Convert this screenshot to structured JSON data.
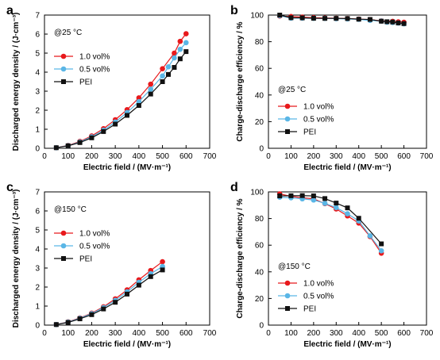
{
  "colors": {
    "1.0 vol%": "#e8191c",
    "0.5 vol%": "#5ab6e6",
    "PEI": "#111111"
  },
  "chart_data": [
    {
      "type": "line",
      "panel": "a",
      "condition": "@25 °C",
      "xlabel": "Electric field / (MV·m⁻¹)",
      "ylabel": "Discharged energy density / (J·cm⁻³)",
      "xlim": [
        0,
        700
      ],
      "ylim": [
        0,
        7
      ],
      "xticks": [
        0,
        100,
        200,
        300,
        400,
        500,
        600,
        700
      ],
      "yticks": [
        0,
        1,
        2,
        3,
        4,
        5,
        6,
        7
      ],
      "legend": "upper-left",
      "series": [
        {
          "name": "1.0 vol%",
          "marker": "circle",
          "x": [
            50,
            100,
            150,
            200,
            250,
            300,
            350,
            400,
            450,
            500,
            550,
            575,
            600
          ],
          "y": [
            0.03,
            0.15,
            0.36,
            0.65,
            1.03,
            1.5,
            2.03,
            2.65,
            3.37,
            4.18,
            5.0,
            5.62,
            6.02
          ]
        },
        {
          "name": "0.5 vol%",
          "marker": "circle",
          "x": [
            50,
            100,
            150,
            200,
            250,
            300,
            350,
            400,
            450,
            500,
            525,
            550,
            575,
            600
          ],
          "y": [
            0.03,
            0.14,
            0.33,
            0.6,
            0.95,
            1.38,
            1.88,
            2.45,
            3.1,
            3.8,
            4.28,
            4.75,
            5.2,
            5.55
          ]
        },
        {
          "name": "PEI",
          "marker": "square",
          "x": [
            50,
            100,
            150,
            200,
            250,
            300,
            350,
            400,
            450,
            500,
            525,
            550,
            575,
            600
          ],
          "y": [
            0.03,
            0.13,
            0.3,
            0.55,
            0.88,
            1.27,
            1.73,
            2.25,
            2.85,
            3.5,
            3.88,
            4.25,
            4.7,
            5.08
          ]
        }
      ]
    },
    {
      "type": "line",
      "panel": "b",
      "condition": "@25 °C",
      "xlabel": "Electric field / (MV·m⁻¹)",
      "ylabel": "Charge-discharge efficiency / %",
      "xlim": [
        0,
        700
      ],
      "ylim": [
        0,
        100
      ],
      "xticks": [
        0,
        100,
        200,
        300,
        400,
        500,
        600,
        700
      ],
      "yticks": [
        0,
        20,
        40,
        60,
        80,
        100
      ],
      "legend": "lower-left",
      "series": [
        {
          "name": "1.0 vol%",
          "marker": "circle",
          "x": [
            50,
            100,
            150,
            200,
            250,
            300,
            350,
            400,
            450,
            500,
            550,
            575,
            600
          ],
          "y": [
            99.2,
            98.9,
            98.5,
            98.0,
            97.8,
            97.6,
            97.4,
            97.0,
            96.6,
            95.6,
            95.3,
            94.9,
            94.6
          ]
        },
        {
          "name": "0.5 vol%",
          "marker": "circle",
          "x": [
            50,
            100,
            150,
            200,
            250,
            300,
            350,
            400,
            450,
            500,
            525,
            550,
            575,
            600
          ],
          "y": [
            99.5,
            97.7,
            97.7,
            97.5,
            97.5,
            97.3,
            97.1,
            96.8,
            96.0,
            95.5,
            94.6,
            94.4,
            94.0,
            93.4
          ]
        },
        {
          "name": "PEI",
          "marker": "square",
          "x": [
            50,
            100,
            150,
            200,
            250,
            300,
            350,
            400,
            450,
            500,
            525,
            550,
            575,
            600
          ],
          "y": [
            100.0,
            98.0,
            97.9,
            97.6,
            97.5,
            97.5,
            97.4,
            96.9,
            96.7,
            95.4,
            95.0,
            94.8,
            94.1,
            93.6
          ]
        }
      ]
    },
    {
      "type": "line",
      "panel": "c",
      "condition": "@150 °C",
      "xlabel": "Electric field / (MV·m⁻¹)",
      "ylabel": "Discharged energy density / (J·cm⁻³)",
      "xlim": [
        0,
        700
      ],
      "ylim": [
        0,
        7
      ],
      "xticks": [
        0,
        100,
        200,
        300,
        400,
        500,
        600,
        700
      ],
      "yticks": [
        0,
        1,
        2,
        3,
        4,
        5,
        6,
        7
      ],
      "legend": "upper-left",
      "series": [
        {
          "name": "1.0 vol%",
          "marker": "circle",
          "x": [
            50,
            100,
            150,
            200,
            250,
            300,
            350,
            400,
            450,
            500
          ],
          "y": [
            0.03,
            0.17,
            0.38,
            0.63,
            0.96,
            1.38,
            1.85,
            2.38,
            2.87,
            3.33
          ]
        },
        {
          "name": "0.5 vol%",
          "marker": "circle",
          "x": [
            50,
            100,
            150,
            200,
            250,
            300,
            350,
            400,
            450,
            500
          ],
          "y": [
            0.03,
            0.16,
            0.36,
            0.6,
            0.92,
            1.3,
            1.75,
            2.25,
            2.7,
            3.08
          ]
        },
        {
          "name": "PEI",
          "marker": "square",
          "x": [
            50,
            100,
            150,
            200,
            250,
            300,
            350,
            400,
            450,
            500
          ],
          "y": [
            0.03,
            0.14,
            0.33,
            0.55,
            0.85,
            1.2,
            1.63,
            2.1,
            2.55,
            2.9
          ]
        }
      ]
    },
    {
      "type": "line",
      "panel": "d",
      "condition": "@150 °C",
      "xlabel": "Electric field / (MV·m⁻¹)",
      "ylabel": "Charge-discharge efficiency / %",
      "xlim": [
        0,
        700
      ],
      "ylim": [
        0,
        100
      ],
      "xticks": [
        0,
        100,
        200,
        300,
        400,
        500,
        600,
        700
      ],
      "yticks": [
        0,
        20,
        40,
        60,
        80,
        100
      ],
      "legend": "lower-left",
      "series": [
        {
          "name": "1.0 vol%",
          "marker": "circle",
          "x": [
            50,
            100,
            150,
            200,
            250,
            300,
            350,
            400,
            450,
            500
          ],
          "y": [
            98.5,
            96.6,
            95.6,
            94.8,
            91.2,
            87.2,
            82.0,
            76.6,
            66.5,
            54.0
          ]
        },
        {
          "name": "0.5 vol%",
          "marker": "circle",
          "x": [
            50,
            100,
            150,
            200,
            250,
            300,
            350,
            400,
            450,
            500
          ],
          "y": [
            96.0,
            95.6,
            94.8,
            93.9,
            91.4,
            88.2,
            83.6,
            78.2,
            67.0,
            55.8
          ]
        },
        {
          "name": "PEI",
          "marker": "square",
          "x": [
            50,
            100,
            150,
            200,
            250,
            300,
            350,
            400,
            450,
            500
          ],
          "y": [
            97.0,
            97.1,
            97.2,
            97.0,
            95.0,
            91.6,
            88.0,
            80.2,
            null,
            61.0
          ]
        }
      ]
    }
  ]
}
